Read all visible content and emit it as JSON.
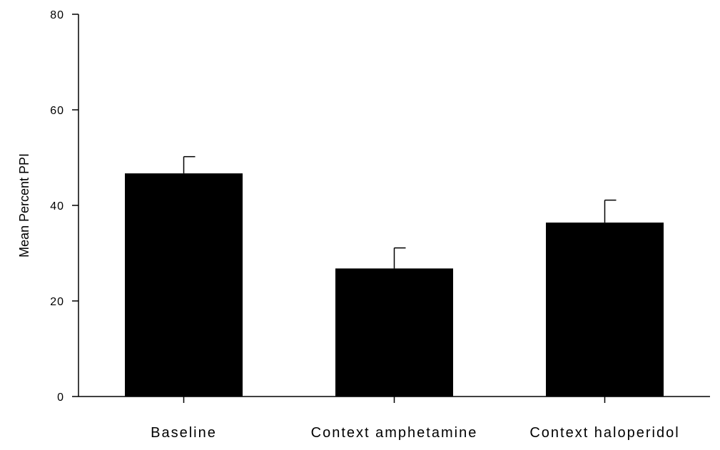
{
  "chart_data": {
    "type": "bar",
    "title": "",
    "xlabel": "",
    "ylabel": "Mean Percent PPI",
    "categories": [
      "Baseline",
      "Context amphetamine",
      "Context haloperidol"
    ],
    "values": [
      46.7,
      26.8,
      36.4
    ],
    "error": [
      3.5,
      4.3,
      4.7
    ],
    "ylim": [
      0,
      80
    ],
    "yticks": [
      0,
      20,
      40,
      60,
      80
    ],
    "grid": false,
    "legend": "none",
    "bar_color": "#000000"
  }
}
